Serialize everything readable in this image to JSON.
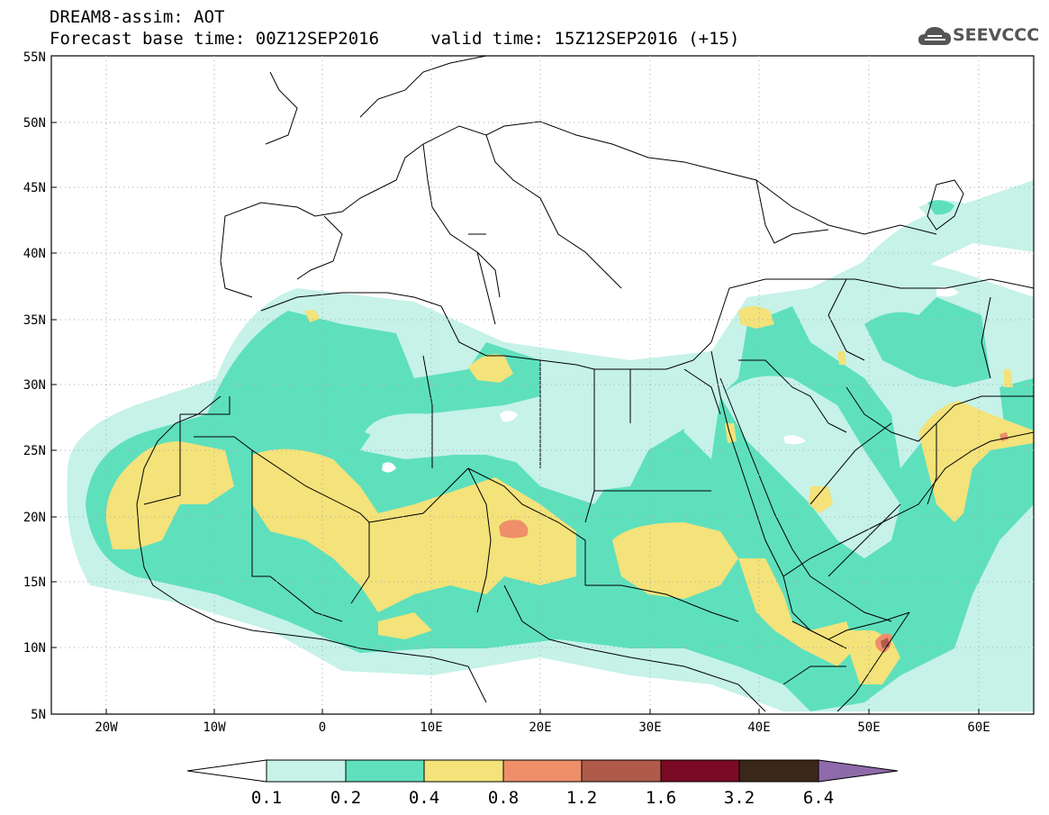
{
  "title_line1": "DREAM8-assim: AOT",
  "title_line2": "Forecast base time: 00Z12SEP2016     valid time: 15Z12SEP2016 (+15)",
  "logo_text": "SEEVCCC",
  "lat_labels": [
    "55N",
    "50N",
    "45N",
    "40N",
    "35N",
    "30N",
    "25N",
    "20N",
    "15N",
    "10N",
    "5N"
  ],
  "lon_labels": [
    "20W",
    "10W",
    "0",
    "10E",
    "20E",
    "30E",
    "40E",
    "50E",
    "60E"
  ],
  "colorbar": {
    "labels": [
      "0.1",
      "0.2",
      "0.4",
      "0.8",
      "1.2",
      "1.6",
      "3.2",
      "6.4"
    ],
    "colors": [
      "#ffffff",
      "#c6f2e8",
      "#5ee0bd",
      "#f4e27a",
      "#ee8f6a",
      "#b05a4a",
      "#7a0a25",
      "#3b2718",
      "#8f6aaa"
    ]
  },
  "field_colors": {
    "c1": "#c6f2e8",
    "c2": "#5ee0bd",
    "c3": "#f4e27a",
    "c4": "#ee8f6a",
    "c5": "#b05a4a"
  }
}
